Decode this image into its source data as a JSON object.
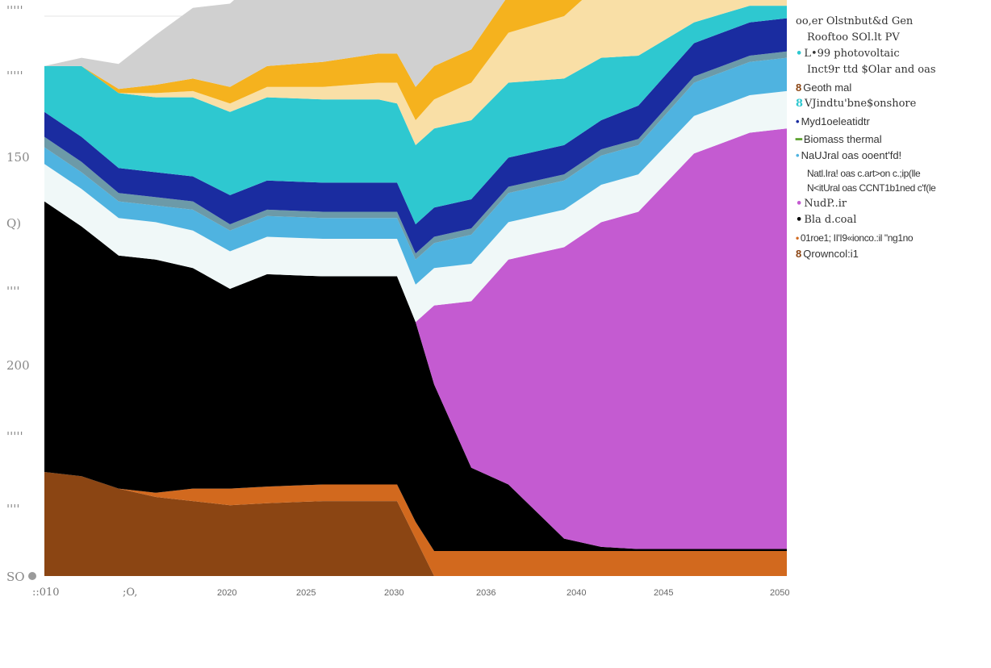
{
  "chart_data": {
    "type": "area",
    "title": "",
    "years": [
      2010,
      2012,
      2014,
      2016,
      2018,
      2020,
      2022,
      2025,
      2028,
      2029,
      2030,
      2031,
      2033,
      2035,
      2038,
      2040,
      2042,
      2045,
      2048,
      2050
    ],
    "y_tick_labels": [
      "'''''",
      "''''' ",
      "150",
      "Q)",
      "''''",
      "200",
      "''''' ",
      "''''",
      "SO"
    ],
    "x_tick_labels": [
      "::010",
      ";O,",
      "2020",
      "2025",
      "2030",
      "2036",
      "2040",
      "2045",
      "2050"
    ],
    "series": [
      {
        "name": "8Qrowncol:i1",
        "color": "#8b4513",
        "values": [
          50,
          48,
          42,
          38,
          36,
          34,
          35,
          36,
          36,
          36,
          18,
          0,
          0,
          0,
          0,
          0,
          0,
          0,
          0,
          0
        ]
      },
      {
        "name": "•01roe1; II'I9«ionco.:il \"ng1no",
        "color": "#d2691e",
        "values": [
          0,
          0,
          0,
          2,
          6,
          8,
          8,
          8,
          8,
          8,
          8,
          12,
          12,
          12,
          12,
          12,
          12,
          12,
          12,
          12
        ]
      },
      {
        "name": "•Bla d.coal",
        "color": "#000000",
        "values": [
          130,
          120,
          112,
          112,
          106,
          96,
          102,
          100,
          100,
          100,
          96,
          80,
          40,
          32,
          6,
          2,
          1,
          1,
          1,
          1
        ]
      },
      {
        "name": "•NudP..ir",
        "color": "#c45bd1",
        "values": [
          0,
          0,
          0,
          0,
          0,
          0,
          0,
          0,
          0,
          0,
          0,
          38,
          80,
          108,
          140,
          156,
          162,
          190,
          200,
          202
        ]
      },
      {
        "name": "N<itUral oas CCNT1b1ned c'f(le",
        "color": "#f0f8f8",
        "values": [
          18,
          18,
          18,
          18,
          18,
          18,
          18,
          18,
          18,
          18,
          18,
          18,
          18,
          18,
          18,
          18,
          18,
          18,
          18,
          18
        ]
      },
      {
        "name": "Natl.Ira! oas c.art>on c.;ip(lle",
        "color": "#4fb3e0",
        "values": [
          8,
          8,
          8,
          8,
          10,
          10,
          10,
          10,
          10,
          10,
          12,
          12,
          14,
          14,
          14,
          14,
          14,
          16,
          16,
          16
        ]
      },
      {
        "name": "•NaUJral oas ooent'fd!",
        "color": "#6c9aa8",
        "values": [
          5,
          5,
          4,
          4,
          4,
          3,
          3,
          3,
          3,
          3,
          3,
          3,
          3,
          3,
          3,
          3,
          3,
          3,
          3,
          3
        ]
      },
      {
        "name": "•Myd1oeleatidtr",
        "color": "#1a2ca0",
        "values": [
          12,
          12,
          12,
          12,
          12,
          14,
          14,
          14,
          14,
          14,
          14,
          14,
          14,
          14,
          14,
          14,
          16,
          16,
          16,
          16
        ]
      },
      {
        "name": "8VJindtu'bne$onshore",
        "color": "#2ec8d0",
        "values": [
          22,
          34,
          36,
          36,
          38,
          40,
          40,
          40,
          40,
          38,
          38,
          38,
          38,
          36,
          32,
          30,
          24,
          10,
          8,
          6
        ]
      },
      {
        "name": "•L•99 photovoltaic",
        "color": "#f9dfa6",
        "values": [
          0,
          0,
          0,
          2,
          3,
          4,
          5,
          6,
          8,
          10,
          12,
          14,
          18,
          24,
          30,
          36,
          44,
          54,
          60,
          64
        ]
      },
      {
        "name": "Inct9r ttd $Olar and oas",
        "color": "#f5b21e",
        "values": [
          0,
          0,
          2,
          4,
          6,
          8,
          10,
          12,
          14,
          14,
          16,
          16,
          16,
          18,
          18,
          18,
          18,
          18,
          18,
          18
        ]
      },
      {
        "name": "Rooftoo SOl.lt PV",
        "color": "#d0d0d0",
        "values": [
          0,
          4,
          12,
          24,
          34,
          40,
          46,
          52,
          56,
          58,
          58,
          58,
          60,
          62,
          64,
          66,
          68,
          72,
          74,
          76
        ]
      }
    ],
    "grid": true,
    "legend_position": "right"
  },
  "legend": [
    {
      "text": "oo,er Olstnbut&d Gen",
      "marker": "",
      "marker_color": "#333333",
      "style": "serif"
    },
    {
      "text": "Rooftoo SOl.lt PV",
      "marker": "",
      "marker_color": "#333333",
      "style": "serif",
      "sub": true
    },
    {
      "text": "L•99 photovoltaic",
      "marker": "•",
      "marker_color": "#2ec8d0",
      "style": "serif"
    },
    {
      "text": "Inct9r ttd $Olar and oas",
      "marker": "",
      "marker_color": "#333333",
      "style": "serif",
      "sub": true
    },
    {
      "text": "Geoth mal",
      "marker": "8",
      "marker_color": "#8b4513",
      "style": "sans"
    },
    {
      "text": "VJindtu'bne$onshore",
      "marker": "8",
      "marker_color": "#2ec8d0",
      "style": "serif"
    },
    {
      "text": "Myd1oeleatidtr",
      "marker": "•",
      "marker_color": "#1a2ca0",
      "style": "sans"
    },
    {
      "text": "Biomass thermal",
      "marker": "━",
      "marker_color": "#5aa02c",
      "style": "sans"
    },
    {
      "text": "NaUJral oas ooent'fd!",
      "marker": "•",
      "marker_color": "#4fb3e0",
      "style": "sans"
    },
    {
      "text": "Natl.Ira! oas c.art>on c.;ip(lle",
      "marker": "",
      "marker_color": "#333333",
      "style": "narrow",
      "sub": true
    },
    {
      "text": "N<itUral oas CCNT1b1ned c'f(le",
      "marker": "",
      "marker_color": "#333333",
      "style": "narrow",
      "sub": true
    },
    {
      "text": "NudP..ir",
      "marker": "•",
      "marker_color": "#c45bd1",
      "style": "serif"
    },
    {
      "text": "Bla d.coal",
      "marker": "•",
      "marker_color": "#000000",
      "style": "serif"
    },
    {
      "text": "01roe1; II'I9«ionco.:il \"ng1no",
      "marker": "•",
      "marker_color": "#d2691e",
      "style": "narrow"
    },
    {
      "text": "Qrowncol:i1",
      "marker": "8",
      "marker_color": "#8b4513",
      "style": "sans"
    }
  ]
}
